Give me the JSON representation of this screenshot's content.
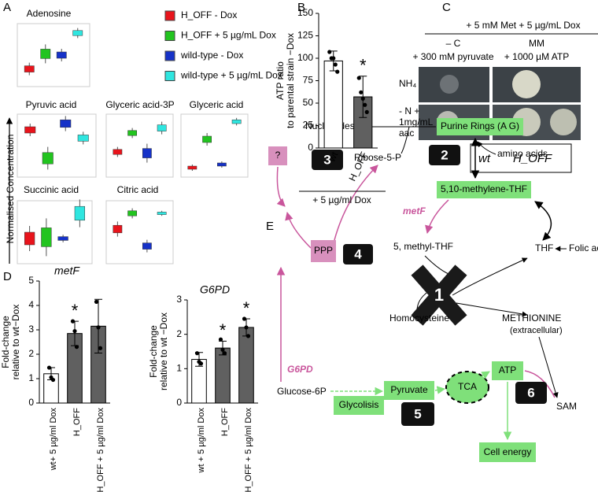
{
  "panel_labels": [
    "A",
    "B",
    "C",
    "D",
    "E"
  ],
  "panel_a": {
    "y_label": "Normalised Concentration",
    "legend": [
      {
        "name": "H_OFF - Dox",
        "color": "#e8141c"
      },
      {
        "name": "H_OFF + 5 µg/mL Dox",
        "color": "#22c41f"
      },
      {
        "name": "wild-type - Dox",
        "color": "#1632c8"
      },
      {
        "name": "wild-type + 5 µg/mL Dox",
        "color": "#2fe6e0"
      }
    ],
    "plots": [
      "Adenosine",
      "Pyruvic acid",
      "Glyceric acid-3P",
      "Glyceric acid",
      "Succinic acid",
      "Citric acid"
    ]
  },
  "chart_data": [
    {
      "type": "bar",
      "y_label": [
        "ATP ratio",
        "to parental strain −Dox"
      ],
      "categories": [
        "wt",
        "H_OFF"
      ],
      "values": [
        97,
        57
      ],
      "errors": [
        11,
        23
      ],
      "points": [
        [
          107,
          100,
          100,
          93,
          85
        ],
        [
          78,
          62,
          55,
          48,
          40
        ]
      ],
      "significance": [
        null,
        "*"
      ],
      "colors": [
        "#ffffff",
        "#606060"
      ],
      "condition": "+ 5 µg/ml Dox",
      "ylim": [
        0,
        150
      ],
      "yticks": [
        0,
        25,
        50,
        75,
        100,
        125,
        150
      ]
    },
    {
      "type": "bar",
      "title": "metF",
      "y_label": [
        "Fold-change",
        "relative to wt−Dox"
      ],
      "categories": [
        "wt+ 5 µg/ml Dox",
        "H_OFF",
        "H_OFF + 5 µg/ml Dox"
      ],
      "values": [
        1.2,
        2.85,
        3.15
      ],
      "errors": [
        0.25,
        0.5,
        1.1
      ],
      "points": [
        [
          1.45,
          1.05,
          0.95
        ],
        [
          3.35,
          2.95,
          2.3
        ],
        [
          4.15,
          3.1,
          2.25
        ]
      ],
      "significance": [
        null,
        "*",
        null
      ],
      "colors": [
        "#ffffff",
        "#606060",
        "#606060"
      ],
      "ylim": [
        0,
        5
      ],
      "yticks": [
        0,
        1,
        2,
        3,
        4,
        5
      ]
    },
    {
      "type": "bar",
      "title": "G6PD",
      "y_label": [
        "Fold-change",
        "relative to wt −Dox"
      ],
      "categories": [
        "wt + 5 µg/ml Dox",
        "H_OFF",
        "H_OFF + 5 µg/ml Dox"
      ],
      "values": [
        1.27,
        1.6,
        2.2
      ],
      "errors": [
        0.2,
        0.2,
        0.25
      ],
      "points": [
        [
          1.45,
          1.2,
          1.15
        ],
        [
          1.85,
          1.55,
          1.45
        ],
        [
          2.45,
          2.2,
          1.95
        ]
      ],
      "significance": [
        null,
        "*",
        "*"
      ],
      "colors": [
        "#ffffff",
        "#606060",
        "#606060"
      ],
      "ylim": [
        0,
        3
      ],
      "yticks": [
        0,
        1,
        2,
        3
      ]
    }
  ],
  "panel_c": {
    "header": "+ 5 mM Met + 5 µg/mL Dox",
    "columns": [
      [
        "– C",
        "+ 300 mM pyruvate"
      ],
      [
        "MM",
        "+ 1000 µM ATP"
      ]
    ],
    "rows": [
      [
        "NH₄"
      ],
      [
        "- N +",
        "1mg/mL",
        "aac"
      ]
    ],
    "strains": [
      "wt",
      "H_OFF"
    ]
  },
  "panel_e": {
    "nucleotides": "Nucleotides",
    "purine_rings": "Purine Rings (A G)",
    "amino_acids": "amino acids",
    "unknown": "?",
    "ribose": "Ribose-5-P",
    "methylene_thf": "5,10-methylene-THF",
    "metf": "metF",
    "ppp": "PPP",
    "methyl_thf": "5, methyl-THF",
    "thf": "THF",
    "folic_acid": "Folic acid",
    "homocysteine": "Homocysteine",
    "methionine": "METHIONINE",
    "extracellular": "(extracellular)",
    "g6pd": "G6PD",
    "glucose": "Glucose-6P",
    "pyruvate": "Pyruvate",
    "tca": "TCA",
    "atp": "ATP",
    "glycolisis": "Glycolisis",
    "sam": "SAM",
    "cell_energy": "Cell energy",
    "steps": [
      "1",
      "2",
      "3",
      "4",
      "5",
      "6"
    ]
  }
}
